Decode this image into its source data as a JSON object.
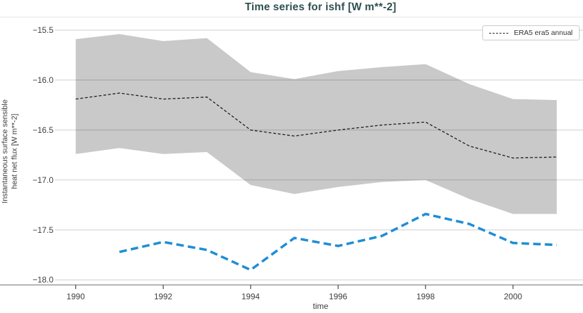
{
  "title": "Time series for ishf [W m**-2]",
  "axes": {
    "xlabel": "time",
    "ylabel_line1": "Instantaneous surface sensible",
    "ylabel_line2": "heat net flux [W m**-2]"
  },
  "legend": {
    "entries": [
      {
        "label": "ERA5 era5 annual",
        "style": "dashed",
        "color": "#2a2a2a"
      }
    ]
  },
  "colors": {
    "title": "#2f4f4f",
    "tick_label": "#3d3d3d",
    "gridline": "rgba(0,0,0,0.19)",
    "top_spine": "#e5e5e5",
    "bottom_spine": "#9b9b9b",
    "tick_mark": "#444444",
    "band": "#c9c9c9",
    "annual_line": "#1a1a1a",
    "blue_line": "#1f8ed5"
  },
  "chart_data": {
    "type": "line",
    "title": "Time series for ishf [W m**-2]",
    "xlabel": "time",
    "ylabel": "Instantaneous surface sensible heat net flux [W m**-2]",
    "xlim": [
      1989.6,
      2001.6
    ],
    "ylim": [
      -18.05,
      -15.37
    ],
    "grid": "horizontal",
    "legend_position": "upper right",
    "xtick_values": [
      1990,
      1992,
      1994,
      1996,
      1998,
      2000
    ],
    "xtick_labels": [
      "1990",
      "1992",
      "1994",
      "1996",
      "1998",
      "2000"
    ],
    "ytick_values": [
      -15.5,
      -16.0,
      -16.5,
      -17.0,
      -17.5,
      -18.0
    ],
    "ytick_labels": [
      "−15.5",
      "−16.0",
      "−16.5",
      "−17.0",
      "−17.5",
      "−18.0"
    ],
    "series": [
      {
        "name": "era5-spread-band",
        "type": "band",
        "color": "#c9c9c9",
        "x": [
          1990,
          1991,
          1992,
          1993,
          1994,
          1995,
          1996,
          1997,
          1998,
          1999,
          2000,
          2001
        ],
        "upper": [
          -15.59,
          -15.54,
          -15.61,
          -15.58,
          -15.92,
          -15.99,
          -15.91,
          -15.87,
          -15.84,
          -16.04,
          -16.19,
          -16.2
        ],
        "lower": [
          -16.74,
          -16.68,
          -16.74,
          -16.72,
          -17.05,
          -17.14,
          -17.07,
          -17.02,
          -17.0,
          -17.19,
          -17.34,
          -17.34
        ]
      },
      {
        "name": "ERA5 era5 annual",
        "type": "line",
        "style": "dashed-thin",
        "color": "#1a1a1a",
        "x": [
          1990,
          1991,
          1992,
          1993,
          1994,
          1995,
          1996,
          1997,
          1998,
          1999,
          2000,
          2001
        ],
        "values": [
          -16.19,
          -16.13,
          -16.19,
          -16.17,
          -16.5,
          -16.56,
          -16.5,
          -16.45,
          -16.42,
          -16.66,
          -16.78,
          -16.77
        ]
      },
      {
        "name": "unlabeled-blue-series",
        "type": "line",
        "style": "dashed-thick",
        "color": "#1f8ed5",
        "x": [
          1991,
          1992,
          1993,
          1994,
          1995,
          1996,
          1997,
          1998,
          1999,
          2000,
          2001
        ],
        "values": [
          -17.72,
          -17.62,
          -17.7,
          -17.9,
          -17.58,
          -17.66,
          -17.56,
          -17.34,
          -17.44,
          -17.63,
          -17.65
        ]
      }
    ]
  }
}
